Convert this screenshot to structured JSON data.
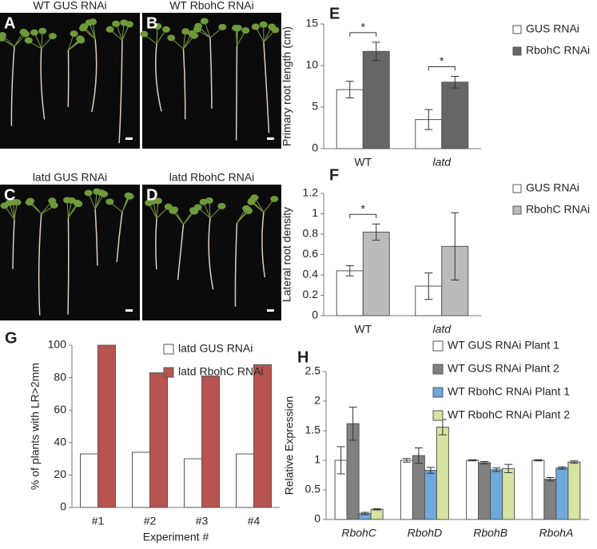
{
  "photos": [
    {
      "panel": "A",
      "title": "WT GUS RNAi"
    },
    {
      "panel": "B",
      "title": "WT RbohC RNAi"
    },
    {
      "panel": "C",
      "title": "latd GUS RNAi"
    },
    {
      "panel": "D",
      "title": "latd RbohC RNAi"
    }
  ],
  "chart_data": [
    {
      "type": "bar",
      "panel": "E",
      "y_label": "Primary root length (cm)",
      "categories": [
        "WT",
        "latd"
      ],
      "series": [
        {
          "name": "GUS RNAi",
          "color": "#ffffff",
          "values": [
            7.1,
            3.5
          ],
          "errors": [
            1.0,
            1.2
          ]
        },
        {
          "name": "RbohC RNAi",
          "color": "#666666",
          "values": [
            11.7,
            8.0
          ],
          "errors": [
            1.1,
            0.7
          ]
        }
      ],
      "ylim": [
        0,
        15
      ],
      "yticks": [
        0,
        5,
        10,
        15
      ],
      "annotations": [
        {
          "text": "*",
          "category": "WT"
        },
        {
          "text": "*",
          "category": "latd"
        }
      ]
    },
    {
      "type": "bar",
      "panel": "F",
      "y_label": "Lateral root density",
      "categories": [
        "WT",
        "latd"
      ],
      "series": [
        {
          "name": "GUS RNAi",
          "color": "#ffffff",
          "values": [
            0.44,
            0.29
          ],
          "errors": [
            0.05,
            0.13
          ]
        },
        {
          "name": "RbohC RNAi",
          "color": "#bbbbbb",
          "values": [
            0.82,
            0.68
          ],
          "errors": [
            0.08,
            0.33
          ]
        }
      ],
      "ylim": [
        0,
        1.2
      ],
      "yticks": [
        0,
        0.2,
        0.4,
        0.6,
        0.8,
        1,
        1.2
      ],
      "annotations": [
        {
          "text": "*",
          "category": "WT"
        }
      ]
    },
    {
      "type": "bar",
      "panel": "G",
      "y_label": "% of plants with LR>2mm",
      "x_label": "Experiment #",
      "categories": [
        "#1",
        "#2",
        "#3",
        "#4"
      ],
      "series": [
        {
          "name": "latd GUS RNAi",
          "color": "#ffffff",
          "values": [
            33,
            34,
            30,
            33
          ]
        },
        {
          "name": "latd RbohC RNAi",
          "color": "#b85450",
          "values": [
            100,
            83,
            81,
            88
          ]
        }
      ],
      "ylim": [
        0,
        100
      ],
      "yticks": [
        0,
        20,
        40,
        60,
        80,
        100
      ]
    },
    {
      "type": "bar",
      "panel": "H",
      "y_label": "Relative Expression",
      "categories": [
        "RbohC",
        "RbohD",
        "RbohB",
        "RbohA"
      ],
      "series": [
        {
          "name": "WT GUS RNAi Plant 1",
          "color": "#ffffff",
          "values": [
            1.0,
            1.0,
            1.0,
            1.0
          ],
          "errors": [
            0.23,
            0.03,
            0.01,
            0.01
          ]
        },
        {
          "name": "WT GUS RNAi Plant 2",
          "color": "#808080",
          "values": [
            1.62,
            1.08,
            0.96,
            0.68
          ],
          "errors": [
            0.28,
            0.13,
            0.02,
            0.03
          ]
        },
        {
          "name": "WT RbohC RNAi Plant 1",
          "color": "#6fa8dc",
          "values": [
            0.1,
            0.83,
            0.84,
            0.87
          ],
          "errors": [
            0.02,
            0.05,
            0.03,
            0.02
          ]
        },
        {
          "name": "WT RbohC RNAi Plant 2",
          "color": "#d5e4a0",
          "values": [
            0.17,
            1.56,
            0.86,
            0.97
          ],
          "errors": [
            0.01,
            0.13,
            0.07,
            0.02
          ]
        }
      ],
      "ylim": [
        0,
        2.5
      ],
      "yticks": [
        0,
        0.5,
        1,
        1.5,
        2,
        2.5
      ]
    }
  ]
}
